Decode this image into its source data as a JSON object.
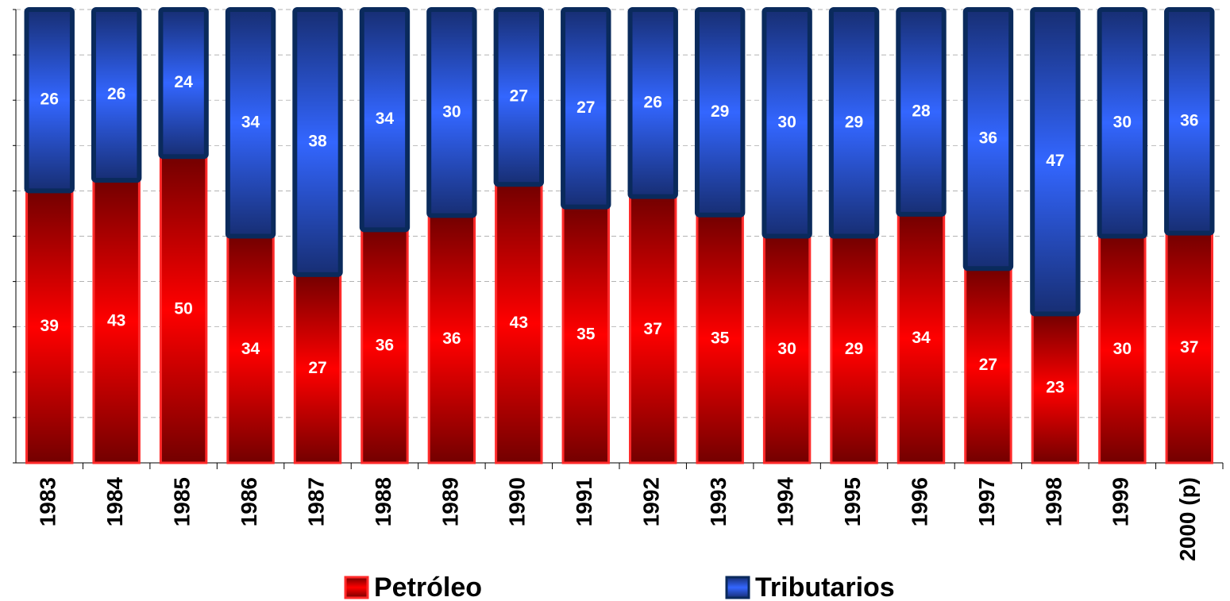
{
  "chart_data": {
    "type": "bar",
    "stacking": "percent",
    "categories": [
      "1983",
      "1984",
      "1985",
      "1986",
      "1987",
      "1988",
      "1989",
      "1990",
      "1991",
      "1992",
      "1993",
      "1994",
      "1995",
      "1996",
      "1997",
      "1998",
      "1999",
      "2000 (p)"
    ],
    "series": [
      {
        "name": "Petróleo",
        "color": "#ff0000",
        "values": [
          39,
          43,
          50,
          34,
          27,
          36,
          36,
          43,
          35,
          37,
          35,
          30,
          29,
          34,
          27,
          23,
          30,
          37
        ]
      },
      {
        "name": "Tributarios",
        "color": "#3366ff",
        "values": [
          26,
          26,
          24,
          34,
          38,
          34,
          30,
          27,
          27,
          26,
          29,
          30,
          29,
          28,
          36,
          47,
          30,
          36
        ]
      }
    ],
    "ylim": [
      0,
      100
    ],
    "yticks": [
      0,
      10,
      20,
      30,
      40,
      50,
      60,
      70,
      80,
      90,
      100
    ],
    "grid": true,
    "legend": "bottom"
  }
}
